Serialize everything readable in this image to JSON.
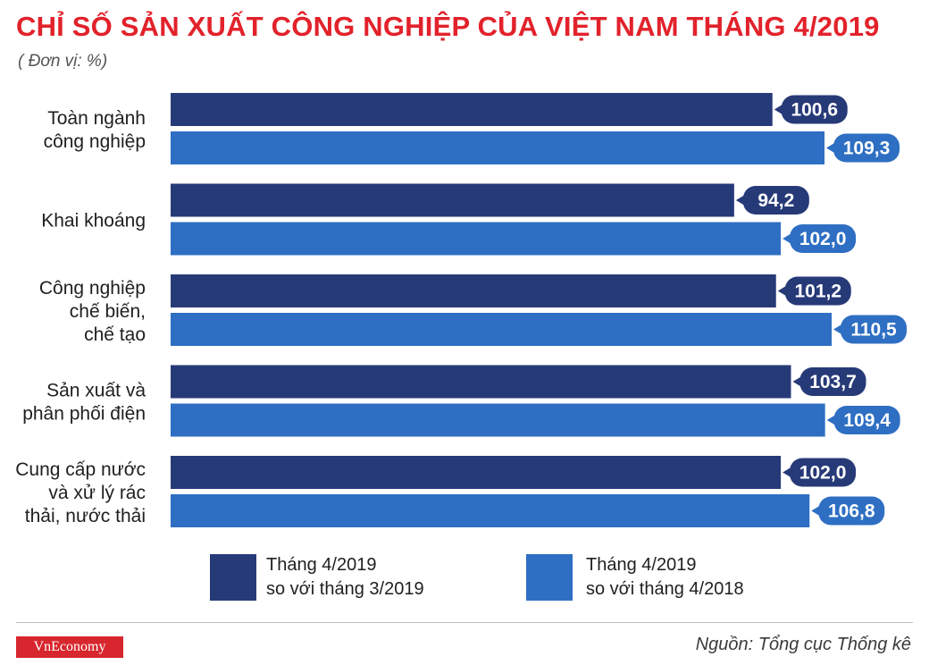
{
  "header": {
    "title": "CHỈ SỐ SẢN XUẤT CÔNG NGHIỆP CỦA VIỆT NAM THÁNG 4/2019",
    "unit": "( Đơn vị: %)"
  },
  "colors": {
    "series1": "#273a78",
    "series2": "#2e6fc3",
    "title": "#e2222b",
    "logo_bg": "#d7262d"
  },
  "chart_data": {
    "type": "bar",
    "orientation": "horizontal",
    "title": "CHỈ SỐ SẢN XUẤT CÔNG NGHIỆP CỦA VIỆT NAM THÁNG 4/2019",
    "unit": "( Đơn vị: %)",
    "categories": [
      [
        "Toàn ngành",
        "công nghiệp"
      ],
      [
        "Khai khoáng"
      ],
      [
        "Công nghiệp",
        "chế biến,",
        "chế tạo"
      ],
      [
        "Sản xuất và",
        "phân phối điện"
      ],
      [
        "Cung cấp nước",
        "và xử lý rác",
        "thải, nước thải"
      ]
    ],
    "series": [
      {
        "name": "Tháng 4/2019 so với tháng 3/2019",
        "values": [
          100.6,
          94.2,
          101.2,
          103.7,
          102.0
        ],
        "labels": [
          "100,6",
          "94,2",
          "101,2",
          "103,7",
          "102,0"
        ]
      },
      {
        "name": "Tháng 4/2019 so với tháng 4/2018",
        "values": [
          109.3,
          102.0,
          110.5,
          109.4,
          106.8
        ],
        "labels": [
          "109,3",
          "102,0",
          "110,5",
          "109,4",
          "106,8"
        ]
      }
    ],
    "grid": false,
    "legend_position": "bottom"
  },
  "legend": [
    {
      "line1": "Tháng 4/2019",
      "line2": "so với tháng 3/2019"
    },
    {
      "line1": "Tháng 4/2019",
      "line2": "so với tháng 4/2018"
    }
  ],
  "footer": {
    "logo": "VnEconomy",
    "source": "Nguồn: Tổng cục Thống kê"
  }
}
